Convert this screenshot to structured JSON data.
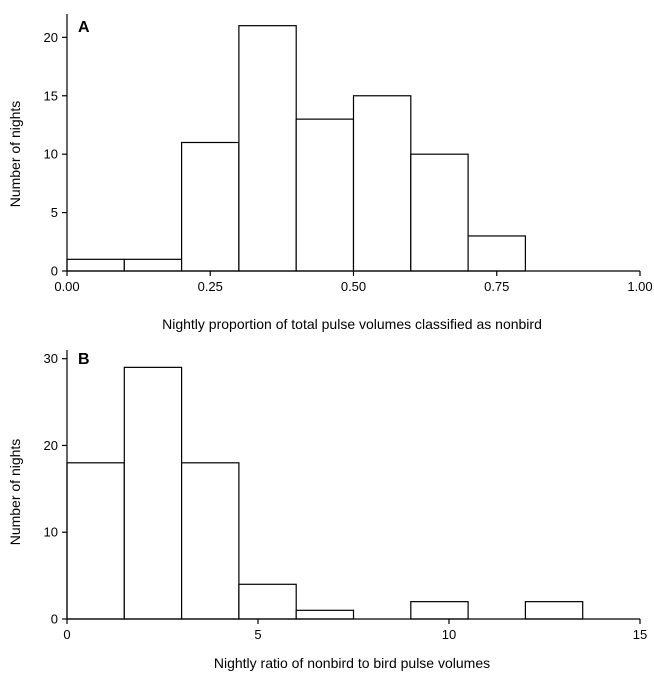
{
  "chart_data": [
    {
      "type": "bar",
      "panel_label": "A",
      "xlabel": "Nightly proportion of total pulse volumes classified as nonbird",
      "ylabel": "Number of nights",
      "bin_edges": [
        0.0,
        0.1,
        0.2,
        0.3,
        0.4,
        0.5,
        0.6,
        0.7,
        0.8
      ],
      "values": [
        1,
        1,
        11,
        21,
        13,
        15,
        10,
        3
      ],
      "xlim": [
        0,
        1
      ],
      "ylim": [
        0,
        22
      ],
      "x_ticks": [
        0,
        0.25,
        0.5,
        0.75,
        1
      ],
      "x_tick_labels": [
        "0.00",
        "0.25",
        "0.50",
        "0.75",
        "1.00"
      ],
      "y_ticks": [
        0,
        5,
        10,
        15,
        20
      ],
      "y_tick_labels": [
        "0",
        "5",
        "10",
        "15",
        "20"
      ],
      "grid": false
    },
    {
      "type": "bar",
      "panel_label": "B",
      "xlabel": "Nightly ratio of nonbird to bird pulse volumes",
      "ylabel": "Number of nights",
      "bin_edges": [
        0,
        1.5,
        3,
        4.5,
        6,
        7.5,
        9,
        10.5,
        12,
        13.5
      ],
      "values": [
        18,
        29,
        18,
        4,
        1,
        0,
        2,
        0,
        2
      ],
      "xlim": [
        0,
        15
      ],
      "ylim": [
        0,
        31
      ],
      "x_ticks": [
        0,
        5,
        10,
        15
      ],
      "x_tick_labels": [
        "0",
        "5",
        "10",
        "15"
      ],
      "y_ticks": [
        0,
        10,
        20,
        30
      ],
      "y_tick_labels": [
        "0",
        "10",
        "20",
        "30"
      ],
      "grid": false
    }
  ]
}
